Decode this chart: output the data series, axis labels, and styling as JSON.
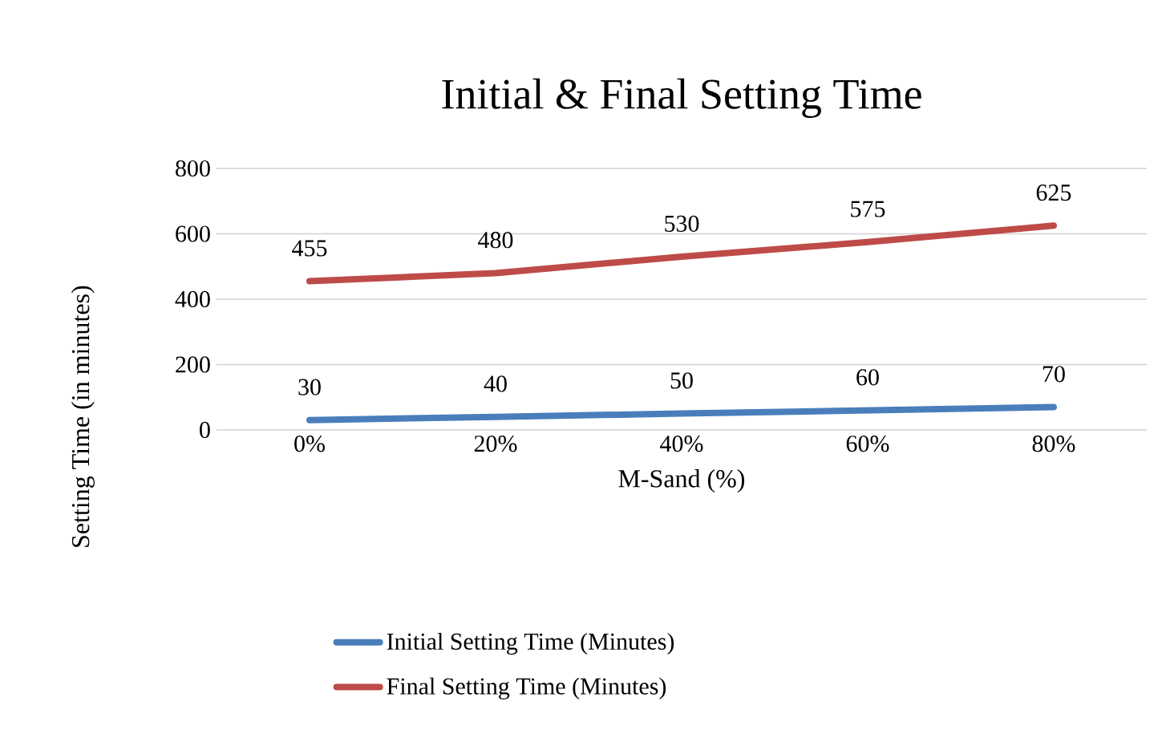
{
  "chart_data": {
    "type": "line",
    "title": "Initial & Final Setting Time",
    "xlabel": "M-Sand (%)",
    "ylabel": "Setting Time (in minutes)",
    "categories": [
      "0%",
      "20%",
      "40%",
      "60%",
      "80%"
    ],
    "series": [
      {
        "name": "Initial Setting Time (Minutes)",
        "color": "#4a7ebb",
        "values": [
          30,
          40,
          50,
          60,
          70
        ]
      },
      {
        "name": "Final Setting Time (Minutes)",
        "color": "#be4b48",
        "values": [
          455,
          480,
          530,
          575,
          625
        ]
      }
    ],
    "ylim": [
      0,
      800
    ],
    "yticks": [
      0,
      200,
      400,
      600,
      800
    ],
    "grid": "y",
    "legend": "bottom",
    "data_labels": true,
    "marker": "none"
  }
}
